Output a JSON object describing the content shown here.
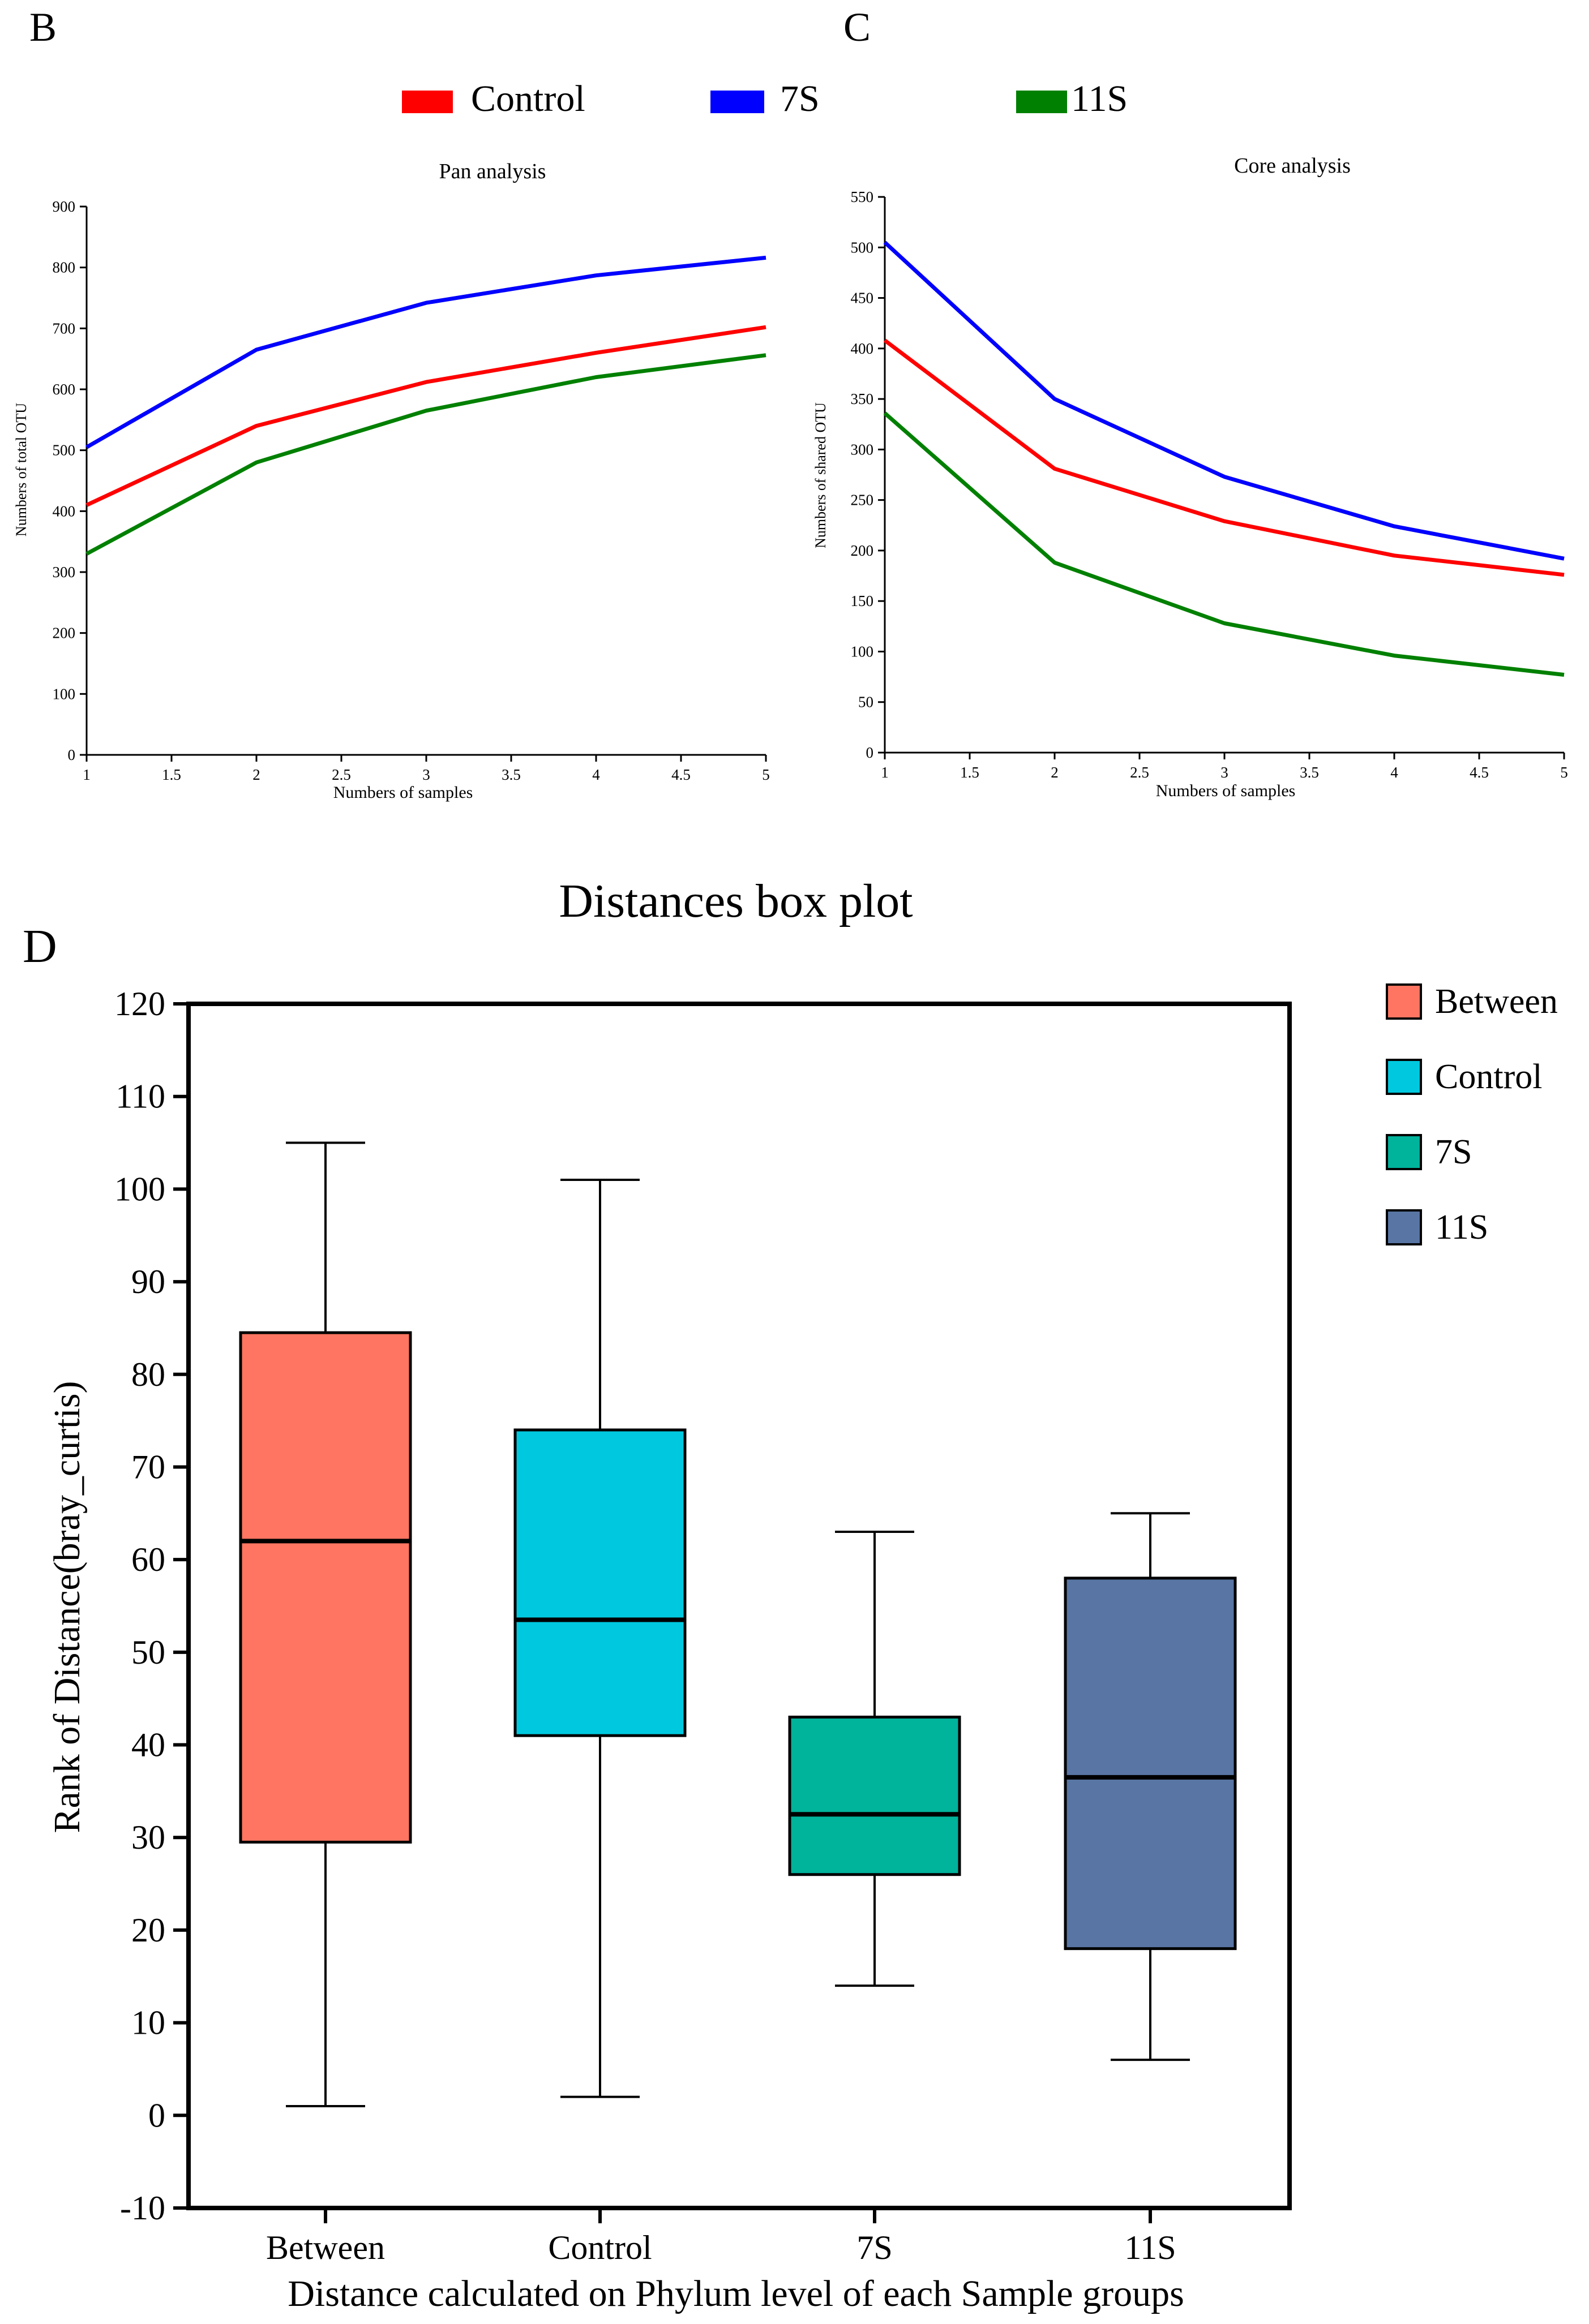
{
  "panels": {
    "b_label": "B",
    "c_label": "C",
    "d_label": "D"
  },
  "top_legend": {
    "items": [
      {
        "name": "Control",
        "color": "#ff0000"
      },
      {
        "name": "7S",
        "color": "#0000ff"
      },
      {
        "name": "11S",
        "color": "#008000"
      }
    ]
  },
  "chart_data": [
    {
      "panel": "B",
      "type": "line",
      "title": "Pan analysis",
      "xlabel": "Numbers of samples",
      "ylabel": "Numbers of total OTU",
      "x": [
        1,
        2,
        3,
        4,
        5
      ],
      "xlim": [
        1,
        5
      ],
      "ylim": [
        0,
        900
      ],
      "xticks": [
        "1",
        "1.5",
        "2",
        "2.5",
        "3",
        "3.5",
        "4",
        "4.5",
        "5"
      ],
      "yticks": [
        "0",
        "100",
        "200",
        "300",
        "400",
        "500",
        "600",
        "700",
        "800",
        "900"
      ],
      "series": [
        {
          "name": "Control",
          "color": "#ff0000",
          "values": [
            410,
            540,
            612,
            660,
            702
          ]
        },
        {
          "name": "7S",
          "color": "#0000ff",
          "values": [
            505,
            665,
            742,
            787,
            816
          ]
        },
        {
          "name": "11S",
          "color": "#008000",
          "values": [
            330,
            480,
            565,
            620,
            656
          ]
        }
      ]
    },
    {
      "panel": "C",
      "type": "line",
      "title": "Core analysis",
      "xlabel": "Numbers of samples",
      "ylabel": "Numbers of shared OTU",
      "x": [
        1,
        2,
        3,
        4,
        5
      ],
      "xlim": [
        1,
        5
      ],
      "ylim": [
        0,
        550
      ],
      "xticks": [
        "1",
        "1.5",
        "2",
        "2.5",
        "3",
        "3.5",
        "4",
        "4.5",
        "5"
      ],
      "yticks": [
        "0",
        "50",
        "100",
        "150",
        "200",
        "250",
        "300",
        "350",
        "400",
        "450",
        "500",
        "550"
      ],
      "series": [
        {
          "name": "Control",
          "color": "#ff0000",
          "values": [
            408,
            281,
            229,
            195,
            176
          ]
        },
        {
          "name": "7S",
          "color": "#0000ff",
          "values": [
            505,
            350,
            273,
            224,
            192
          ]
        },
        {
          "name": "11S",
          "color": "#008000",
          "values": [
            336,
            188,
            128,
            96,
            77
          ]
        }
      ]
    },
    {
      "panel": "D",
      "type": "box",
      "title": "Distances box plot",
      "xlabel": "Distance calculated on Phylum level of each Sample groups",
      "ylabel": "Rank of Distance(bray_curtis)",
      "ylim": [
        -10,
        120
      ],
      "yticks": [
        "-10",
        "0",
        "10",
        "20",
        "30",
        "40",
        "50",
        "60",
        "70",
        "80",
        "90",
        "100",
        "110",
        "120"
      ],
      "categories": [
        "Between",
        "Control",
        "7S",
        "11S"
      ],
      "boxes": [
        {
          "name": "Between",
          "color": "#ff7561",
          "min": 1,
          "q1": 29.5,
          "median": 62,
          "q3": 84.5,
          "max": 105
        },
        {
          "name": "Control",
          "color": "#00c9df",
          "min": 2,
          "q1": 41,
          "median": 53.5,
          "q3": 74,
          "max": 101
        },
        {
          "name": "7S",
          "color": "#00b39b",
          "min": 14,
          "q1": 26,
          "median": 32.5,
          "q3": 43,
          "max": 63
        },
        {
          "name": "11S",
          "color": "#5875a3",
          "min": 6,
          "q1": 18,
          "median": 36.5,
          "q3": 58,
          "max": 65
        }
      ],
      "legend": [
        "Between",
        "Control",
        "7S",
        "11S"
      ]
    }
  ]
}
